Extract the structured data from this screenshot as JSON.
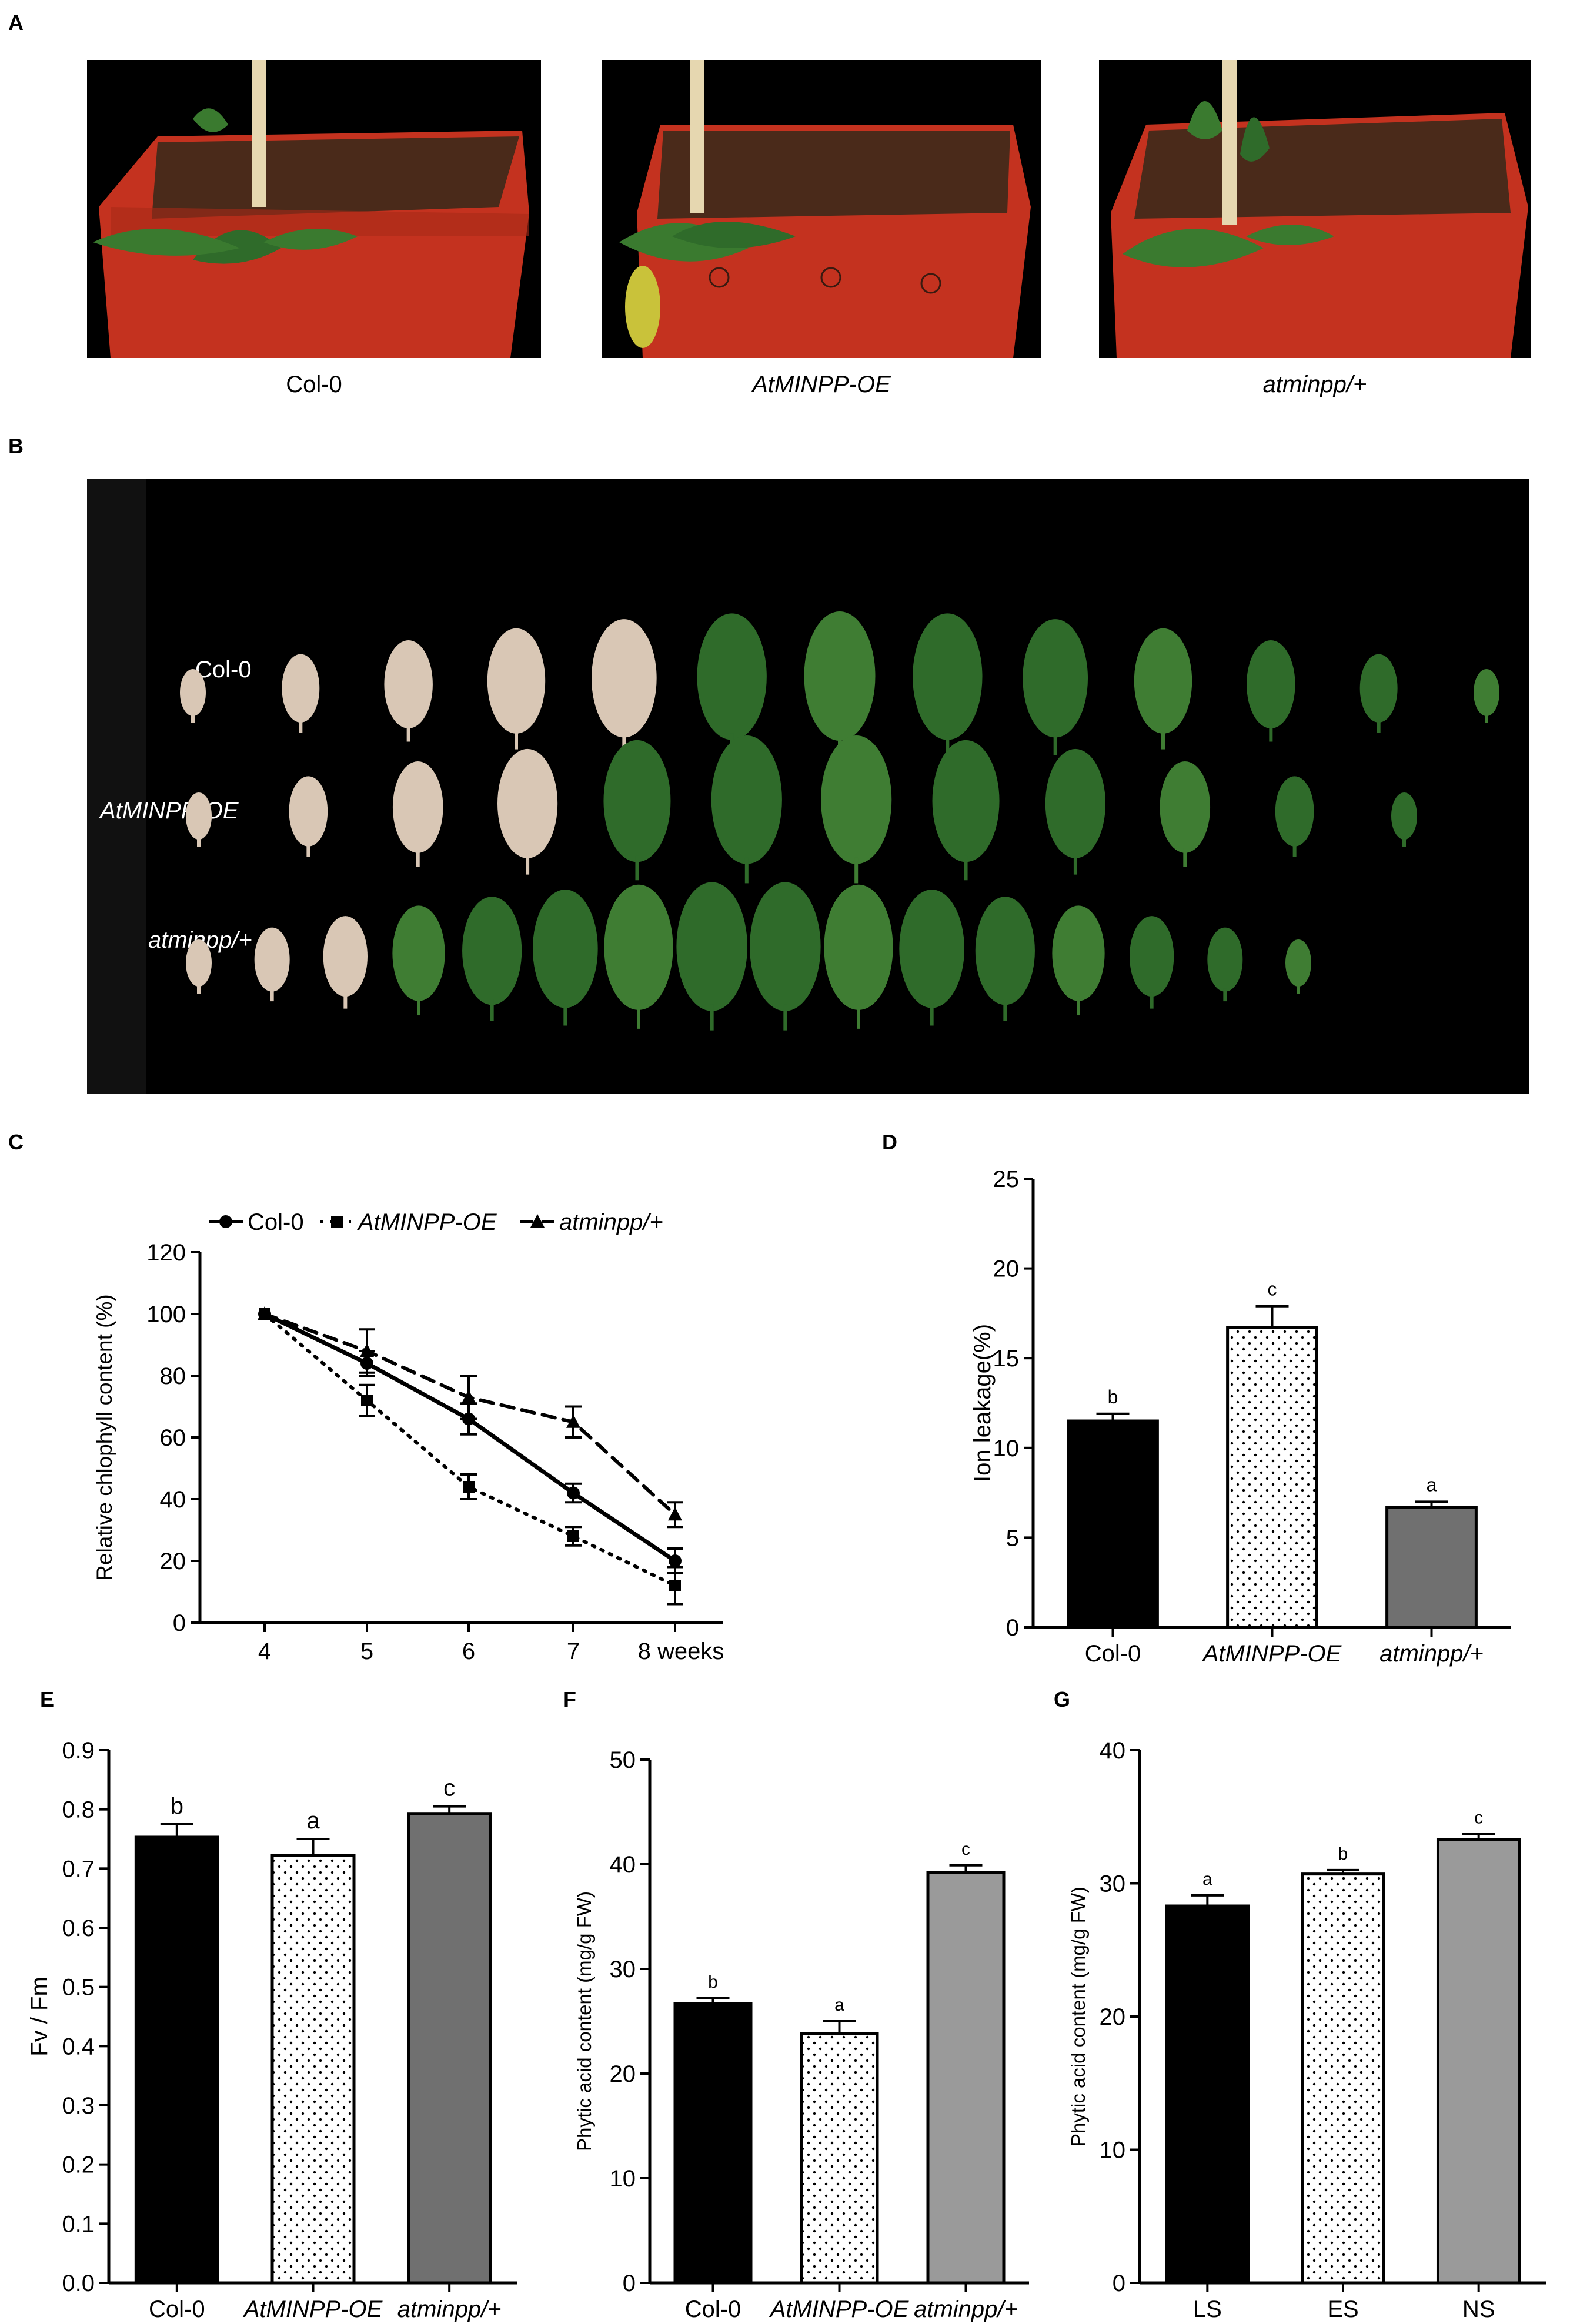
{
  "panels": {
    "A": {
      "label": "A",
      "captions": [
        "Col-0",
        "AtMINPP-OE",
        "atminpp/+"
      ]
    },
    "B": {
      "label": "B",
      "row_labels": [
        "Col-0",
        "AtMINPP-OE",
        "atminpp/+"
      ],
      "leaf_counts": [
        13,
        12,
        16
      ]
    },
    "C": {
      "label": "C"
    },
    "D": {
      "label": "D"
    },
    "E": {
      "label": "E"
    },
    "F": {
      "label": "F"
    },
    "G": {
      "label": "G"
    }
  },
  "colors": {
    "black_bar": "#000000",
    "gray_bar_dark": "#707070",
    "gray_bar_light": "#9a9a9a",
    "pot_red": "#c4321f",
    "soil": "#4a2a1a",
    "leaf_green": "#2f6b2a"
  },
  "chart_data": [
    {
      "id": "C",
      "type": "line",
      "title": "",
      "xlabel": "",
      "ylabel": "Relative chlophyll content (%)",
      "x_tick_labels": [
        "4",
        "5",
        "6",
        "7",
        "8 weeks"
      ],
      "x": [
        4,
        5,
        6,
        7,
        8
      ],
      "ylim": [
        0,
        120
      ],
      "y_ticks": [
        0,
        20,
        40,
        60,
        80,
        100,
        120
      ],
      "legend": "top",
      "series": [
        {
          "name": "Col-0",
          "marker": "circle",
          "dash": "solid",
          "values": [
            100,
            84,
            66,
            42,
            20
          ],
          "errors": [
            0,
            4,
            5,
            3,
            4
          ]
        },
        {
          "name": "AtMINPP-OE",
          "marker": "square",
          "dash": "dotted",
          "values": [
            100,
            72,
            44,
            28,
            12
          ],
          "errors": [
            0,
            5,
            4,
            3,
            6
          ]
        },
        {
          "name": "atminpp/+",
          "marker": "triangle",
          "dash": "dashed",
          "values": [
            100,
            88,
            73,
            65,
            35
          ],
          "errors": [
            0,
            7,
            7,
            5,
            4
          ]
        }
      ]
    },
    {
      "id": "D",
      "type": "bar",
      "ylabel": "Ion leakage(%)",
      "categories": [
        "Col-0",
        "AtMINPP-OE",
        "atminpp/+"
      ],
      "values": [
        11.5,
        16.7,
        6.7
      ],
      "errors": [
        0.4,
        1.2,
        0.3
      ],
      "letters": [
        "b",
        "c",
        "a"
      ],
      "fills": [
        "black",
        "dots",
        "darkgray"
      ],
      "ylim": [
        0,
        25
      ],
      "y_ticks": [
        0,
        5,
        10,
        15,
        20,
        25
      ]
    },
    {
      "id": "E",
      "type": "bar",
      "ylabel": "Fv / Fm",
      "categories": [
        "Col-0",
        "AtMINPP-OE",
        "atminpp/+"
      ],
      "values": [
        0.753,
        0.722,
        0.793
      ],
      "errors": [
        0.022,
        0.028,
        0.012
      ],
      "letters": [
        "b",
        "a",
        "c"
      ],
      "fills": [
        "black",
        "dots",
        "darkgray"
      ],
      "ylim": [
        0,
        0.9
      ],
      "y_ticks": [
        "0.0",
        "0.1",
        "0.2",
        "0.3",
        "0.4",
        "0.5",
        "0.6",
        "0.7",
        "0.8",
        "0.9"
      ]
    },
    {
      "id": "F",
      "type": "bar",
      "ylabel": "Phytic acid content (mg/g FW)",
      "categories": [
        "Col-0",
        "AtMINPP-OE",
        "atminpp/+"
      ],
      "values": [
        26.7,
        23.8,
        39.2
      ],
      "errors": [
        0.5,
        1.2,
        0.7
      ],
      "letters": [
        "b",
        "a",
        "c"
      ],
      "fills": [
        "black",
        "dots",
        "lightgray"
      ],
      "ylim": [
        0,
        50
      ],
      "y_ticks": [
        0,
        10,
        20,
        30,
        40,
        50
      ]
    },
    {
      "id": "G",
      "type": "bar",
      "ylabel": "Phytic acid content (mg/g FW)",
      "categories": [
        "LS",
        "ES",
        "NS"
      ],
      "values": [
        28.3,
        30.7,
        33.3
      ],
      "errors": [
        0.8,
        0.3,
        0.4
      ],
      "letters": [
        "a",
        "b",
        "c"
      ],
      "fills": [
        "black",
        "dots",
        "lightgray"
      ],
      "ylim": [
        0,
        40
      ],
      "y_ticks": [
        0,
        10,
        20,
        30,
        40
      ]
    }
  ]
}
